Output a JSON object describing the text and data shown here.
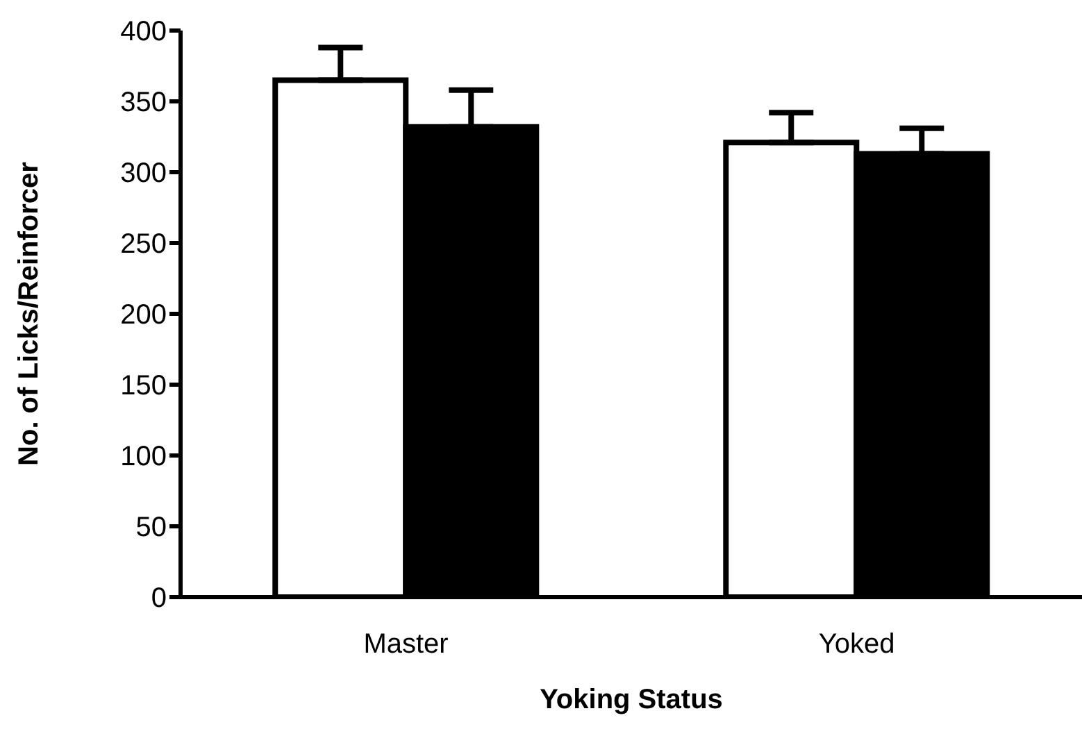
{
  "chart_data": {
    "type": "bar",
    "xlabel": "Yoking Status",
    "ylabel": "No. of Licks/Reinforcer",
    "categories": [
      "Master",
      "Yoked"
    ],
    "series": [
      {
        "color": "#ffffff",
        "values": [
          365,
          321
        ],
        "errors": [
          23,
          21
        ]
      },
      {
        "color": "#000000",
        "values": [
          332,
          313
        ],
        "errors": [
          26,
          18
        ]
      }
    ],
    "ylim": [
      0,
      400
    ],
    "yticks": [
      0,
      50,
      100,
      150,
      200,
      250,
      300,
      350,
      400
    ],
    "grid": false,
    "legend": false
  }
}
